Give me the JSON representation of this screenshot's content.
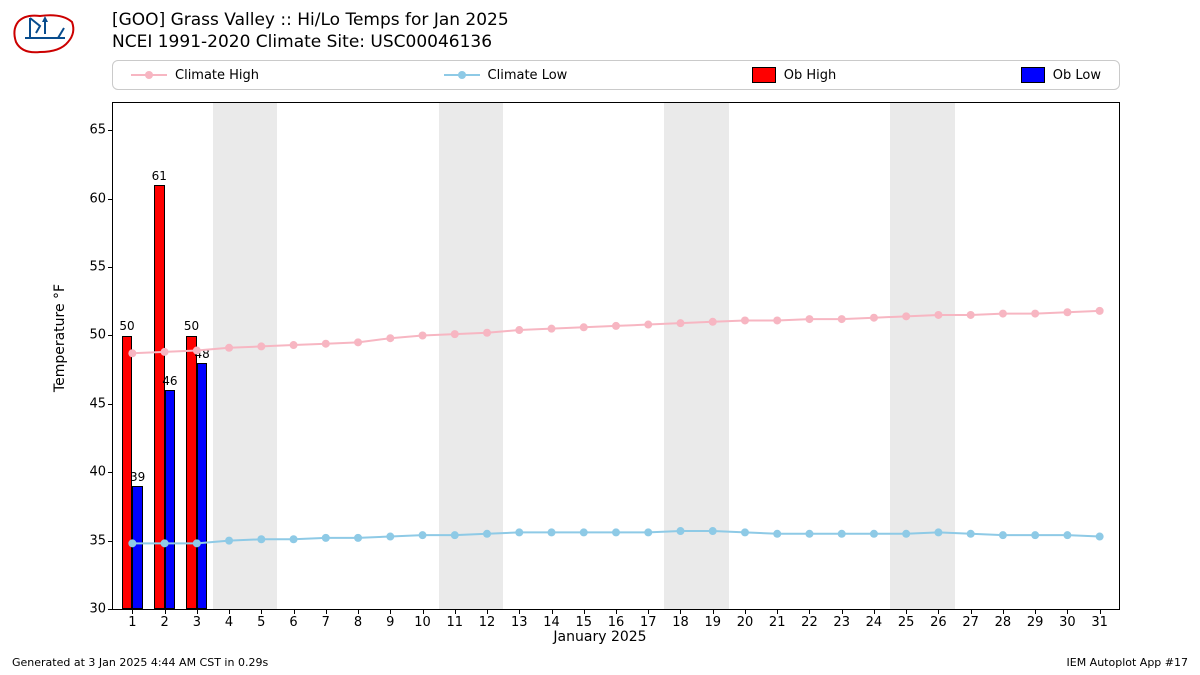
{
  "title_line1": "[GOO] Grass Valley :: Hi/Lo Temps for Jan 2025",
  "title_line2": "NCEI 1991-2020 Climate Site: USC00046136",
  "footer_left": "Generated at 3 Jan 2025 4:44 AM CST in 0.29s",
  "footer_right": "IEM Autoplot App #17",
  "ylabel": "Temperature °F",
  "xlabel": "January 2025",
  "yaxis": {
    "min": 30,
    "max": 67,
    "ticks": [
      30,
      35,
      40,
      45,
      50,
      55,
      60,
      65
    ]
  },
  "xaxis": {
    "min": 0.4,
    "max": 31.6,
    "ticks": [
      1,
      2,
      3,
      4,
      5,
      6,
      7,
      8,
      9,
      10,
      11,
      12,
      13,
      14,
      15,
      16,
      17,
      18,
      19,
      20,
      21,
      22,
      23,
      24,
      25,
      26,
      27,
      28,
      29,
      30,
      31
    ]
  },
  "weekend_bands": [
    [
      4,
      5
    ],
    [
      11,
      12
    ],
    [
      18,
      19
    ],
    [
      25,
      26
    ]
  ],
  "band_color": "#eaeaea",
  "legend": {
    "climate_high": "Climate High",
    "climate_low": "Climate Low",
    "ob_high": "Ob High",
    "ob_low": "Ob Low"
  },
  "colors": {
    "climate_high": "#f7b6c2",
    "climate_low": "#8ecae6",
    "ob_high": "#ff0000",
    "ob_low": "#0000ff"
  },
  "climate_high": [
    48.7,
    48.8,
    48.9,
    49.1,
    49.2,
    49.3,
    49.4,
    49.5,
    49.8,
    50.0,
    50.1,
    50.2,
    50.4,
    50.5,
    50.6,
    50.7,
    50.8,
    50.9,
    51.0,
    51.1,
    51.1,
    51.2,
    51.2,
    51.3,
    51.4,
    51.5,
    51.5,
    51.6,
    51.6,
    51.7,
    51.8
  ],
  "climate_low": [
    34.8,
    34.8,
    34.8,
    35.0,
    35.1,
    35.1,
    35.2,
    35.2,
    35.3,
    35.4,
    35.4,
    35.5,
    35.6,
    35.6,
    35.6,
    35.6,
    35.6,
    35.7,
    35.7,
    35.6,
    35.5,
    35.5,
    35.5,
    35.5,
    35.5,
    35.6,
    35.5,
    35.4,
    35.4,
    35.4,
    35.3
  ],
  "obs": [
    {
      "day": 1,
      "high": 50,
      "low": 39
    },
    {
      "day": 2,
      "high": 61,
      "low": 46
    },
    {
      "day": 3,
      "high": 50,
      "low": 48
    }
  ],
  "bar_width": 0.33,
  "marker_radius": 4,
  "line_width": 2,
  "font_family": "DejaVu Sans, Arial, sans-serif"
}
